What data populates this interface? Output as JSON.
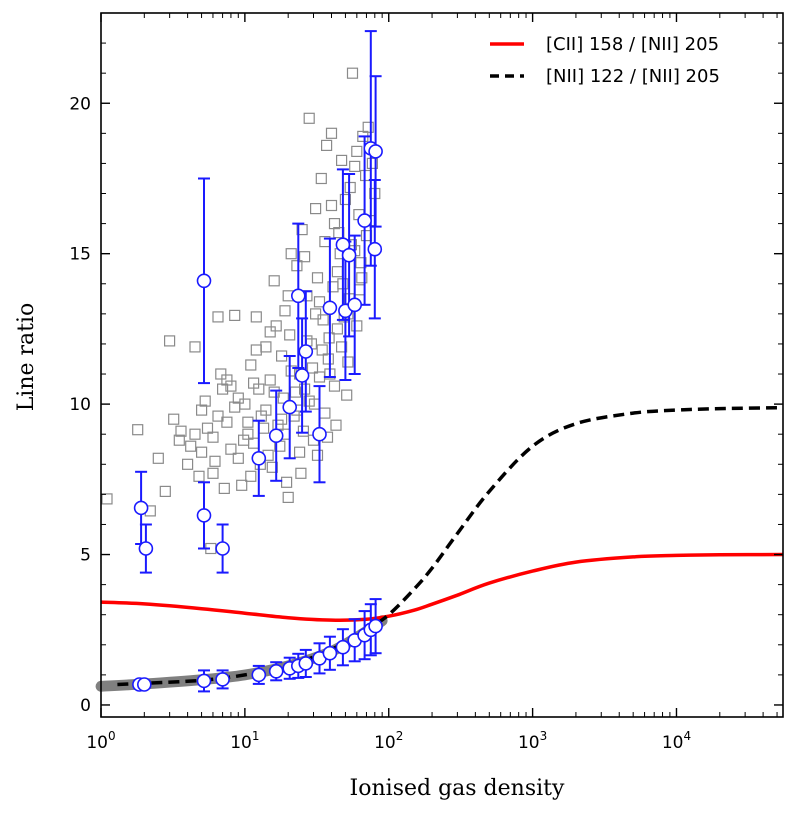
{
  "chart_data": {
    "type": "scatter",
    "title": "",
    "xlabel": "Ionised gas density",
    "ylabel": "Line ratio",
    "xscale": "log",
    "xlim": [
      1,
      55000
    ],
    "ylim": [
      -0.4,
      23
    ],
    "x_ticks": [
      {
        "value": 1,
        "base": "10",
        "exp": "0"
      },
      {
        "value": 10,
        "base": "10",
        "exp": "1"
      },
      {
        "value": 100,
        "base": "10",
        "exp": "2"
      },
      {
        "value": 1000,
        "base": "10",
        "exp": "3"
      },
      {
        "value": 10000,
        "base": "10",
        "exp": "4"
      }
    ],
    "y_ticks": [
      {
        "value": 0,
        "label": "0"
      },
      {
        "value": 5,
        "label": "5"
      },
      {
        "value": 10,
        "label": "10"
      },
      {
        "value": 15,
        "label": "15"
      },
      {
        "value": 20,
        "label": "20"
      }
    ],
    "legend_position": "top-right",
    "lines": [
      {
        "name": "[CII] 158 / [NII] 205",
        "color": "#ff0000",
        "style": "solid",
        "x": [
          1,
          2,
          5,
          10,
          20,
          40,
          70,
          100,
          150,
          200,
          300,
          500,
          1000,
          2000,
          5000,
          10000,
          20000,
          55000
        ],
        "y": [
          3.42,
          3.36,
          3.2,
          3.05,
          2.9,
          2.82,
          2.85,
          2.95,
          3.15,
          3.35,
          3.65,
          4.05,
          4.45,
          4.75,
          4.92,
          4.97,
          4.99,
          5.0
        ]
      },
      {
        "name": "[NII] 122 / [NII] 205",
        "color": "#000000",
        "style": "dashed",
        "x": [
          1.3,
          2,
          5,
          10,
          20,
          40,
          70,
          100,
          150,
          200,
          300,
          500,
          1000,
          2000,
          5000,
          10000,
          20000,
          55000
        ],
        "y": [
          0.68,
          0.72,
          0.82,
          1.0,
          1.3,
          1.85,
          2.5,
          3.0,
          3.85,
          4.55,
          5.7,
          7.1,
          8.6,
          9.35,
          9.7,
          9.8,
          9.85,
          9.88
        ]
      }
    ],
    "band": {
      "color": "#808080",
      "x": [
        1,
        2,
        5,
        10,
        20,
        40,
        70,
        90
      ],
      "y": [
        0.62,
        0.7,
        0.84,
        1.0,
        1.3,
        1.78,
        2.45,
        2.8
      ],
      "half_width": 0.18
    },
    "grey_squares": [
      [
        1.1,
        6.85
      ],
      [
        1.8,
        9.15
      ],
      [
        2.2,
        6.45
      ],
      [
        2.5,
        8.2
      ],
      [
        2.8,
        7.1
      ],
      [
        3.0,
        12.1
      ],
      [
        3.2,
        9.5
      ],
      [
        3.5,
        8.8
      ],
      [
        4.0,
        8.0
      ],
      [
        4.5,
        11.9
      ],
      [
        4.5,
        9.0
      ],
      [
        5.0,
        8.4
      ],
      [
        5.3,
        10.1
      ],
      [
        5.5,
        9.2
      ],
      [
        5.8,
        5.2
      ],
      [
        6.0,
        7.7
      ],
      [
        6.5,
        12.9
      ],
      [
        6.5,
        9.6
      ],
      [
        7.0,
        10.5
      ],
      [
        7.5,
        10.8
      ],
      [
        8.0,
        8.5
      ],
      [
        8.5,
        12.95
      ],
      [
        9.0,
        10.2
      ],
      [
        9.5,
        7.3
      ],
      [
        10.0,
        10.0
      ],
      [
        10.5,
        9.0
      ],
      [
        11.0,
        11.3
      ],
      [
        11.5,
        8.7
      ],
      [
        12.0,
        12.9
      ],
      [
        12.5,
        10.5
      ],
      [
        13.0,
        9.6
      ],
      [
        14.0,
        11.9
      ],
      [
        14.5,
        8.3
      ],
      [
        15.0,
        10.8
      ],
      [
        16.0,
        14.1
      ],
      [
        16.5,
        12.6
      ],
      [
        17.0,
        9.3
      ],
      [
        18.0,
        11.6
      ],
      [
        18.5,
        10.2
      ],
      [
        19.0,
        13.1
      ],
      [
        20.0,
        6.9
      ],
      [
        20.5,
        12.3
      ],
      [
        21.0,
        15.0
      ],
      [
        22.0,
        9.6
      ],
      [
        23.0,
        14.6
      ],
      [
        24.0,
        11.0
      ],
      [
        25.0,
        15.8
      ],
      [
        26.0,
        10.5
      ],
      [
        27.0,
        13.6
      ],
      [
        28.0,
        19.5
      ],
      [
        29.0,
        12.0
      ],
      [
        30.0,
        8.8
      ],
      [
        31.0,
        16.5
      ],
      [
        32.0,
        14.2
      ],
      [
        33.0,
        10.9
      ],
      [
        34.0,
        17.5
      ],
      [
        35.0,
        12.8
      ],
      [
        36.0,
        15.4
      ],
      [
        37.0,
        18.6
      ],
      [
        38.0,
        11.5
      ],
      [
        40.0,
        19.0
      ],
      [
        41.0,
        13.9
      ],
      [
        42.0,
        16.0
      ],
      [
        44.0,
        12.5
      ],
      [
        45.0,
        15.7
      ],
      [
        47.0,
        18.1
      ],
      [
        48.0,
        14.0
      ],
      [
        50.0,
        16.8
      ],
      [
        52.0,
        13.0
      ],
      [
        54.0,
        17.2
      ],
      [
        56.0,
        21.0
      ],
      [
        58.0,
        15.1
      ],
      [
        60.0,
        18.4
      ],
      [
        62.0,
        16.3
      ],
      [
        64.0,
        14.7
      ],
      [
        66.0,
        18.9
      ],
      [
        69.0,
        17.6
      ],
      [
        72.0,
        19.2
      ],
      [
        75.0,
        16.1
      ],
      [
        80.0,
        17.0
      ],
      [
        8.5,
        9.9
      ],
      [
        10.5,
        9.4
      ],
      [
        14.0,
        9.8
      ],
      [
        19.0,
        9.0
      ],
      [
        24.0,
        8.4
      ],
      [
        28.0,
        10.1
      ],
      [
        36.0,
        9.7
      ],
      [
        42.0,
        10.6
      ],
      [
        52.0,
        11.4
      ],
      [
        60.0,
        12.6
      ],
      [
        6.0,
        8.9
      ],
      [
        7.5,
        9.4
      ],
      [
        9.0,
        8.2
      ],
      [
        11.5,
        10.7
      ],
      [
        13.5,
        9.2
      ],
      [
        16.0,
        10.4
      ],
      [
        17.5,
        8.6
      ],
      [
        21.0,
        11.1
      ],
      [
        23.0,
        9.8
      ],
      [
        27.0,
        12.1
      ],
      [
        29.5,
        11.2
      ],
      [
        33.0,
        13.4
      ],
      [
        38.5,
        12.2
      ],
      [
        44.0,
        14.4
      ],
      [
        49.0,
        12.9
      ],
      [
        55.0,
        15.3
      ],
      [
        63.0,
        13.8
      ],
      [
        4.2,
        8.6
      ],
      [
        5.0,
        9.8
      ],
      [
        6.8,
        11.0
      ],
      [
        8.0,
        10.6
      ],
      [
        12.0,
        11.8
      ],
      [
        15.0,
        12.4
      ],
      [
        20.0,
        13.6
      ],
      [
        26.0,
        14.9
      ],
      [
        31.0,
        13.0
      ],
      [
        40.0,
        16.6
      ],
      [
        46.0,
        15.0
      ],
      [
        58.0,
        17.9
      ],
      [
        70.0,
        15.6
      ],
      [
        3.6,
        9.1
      ],
      [
        4.8,
        7.6
      ],
      [
        6.2,
        8.1
      ],
      [
        7.2,
        7.2
      ],
      [
        9.8,
        8.8
      ],
      [
        12.8,
        8.0
      ],
      [
        18.0,
        9.5
      ],
      [
        22.5,
        10.4
      ],
      [
        25.5,
        9.1
      ],
      [
        30.5,
        10.0
      ],
      [
        34.5,
        11.8
      ],
      [
        39.0,
        11.0
      ],
      [
        47.0,
        11.9
      ],
      [
        53.0,
        13.5
      ],
      [
        65.0,
        14.2
      ],
      [
        77.0,
        18.0
      ],
      [
        11.0,
        7.6
      ],
      [
        15.5,
        7.9
      ],
      [
        19.5,
        7.4
      ],
      [
        24.5,
        7.7
      ],
      [
        32.0,
        8.3
      ],
      [
        37.5,
        8.9
      ],
      [
        43.0,
        9.3
      ],
      [
        51.0,
        10.3
      ]
    ],
    "blue_points_high": [
      {
        "x": 1.9,
        "y": 6.55,
        "err": 1.2
      },
      {
        "x": 2.05,
        "y": 5.2,
        "err": 0.8
      },
      {
        "x": 5.2,
        "y": 14.1,
        "err": 3.4
      },
      {
        "x": 5.2,
        "y": 6.3,
        "err": 1.1
      },
      {
        "x": 7.0,
        "y": 5.2,
        "err": 0.8
      },
      {
        "x": 12.5,
        "y": 8.2,
        "err": 1.25
      },
      {
        "x": 16.5,
        "y": 8.95,
        "err": 1.5
      },
      {
        "x": 20.5,
        "y": 9.9,
        "err": 1.7
      },
      {
        "x": 23.5,
        "y": 13.6,
        "err": 2.4
      },
      {
        "x": 25.0,
        "y": 10.95,
        "err": 1.9
      },
      {
        "x": 26.5,
        "y": 11.75,
        "err": 2.0
      },
      {
        "x": 33.0,
        "y": 9.0,
        "err": 1.6
      },
      {
        "x": 39.0,
        "y": 13.2,
        "err": 2.3
      },
      {
        "x": 48.0,
        "y": 15.3,
        "err": 2.5
      },
      {
        "x": 50.0,
        "y": 13.1,
        "err": 2.3
      },
      {
        "x": 53.0,
        "y": 14.95,
        "err": 2.7
      },
      {
        "x": 58.0,
        "y": 13.3,
        "err": 2.3
      },
      {
        "x": 68.0,
        "y": 16.1,
        "err": 2.8
      },
      {
        "x": 75.0,
        "y": 18.5,
        "err": 3.9
      },
      {
        "x": 80.0,
        "y": 15.15,
        "err": 2.3
      },
      {
        "x": 81.0,
        "y": 18.4,
        "err": 2.5
      }
    ],
    "blue_points_low": [
      {
        "x": 1.85,
        "y": 0.68,
        "err": 0.12
      },
      {
        "x": 2.0,
        "y": 0.68,
        "err": 0.12
      },
      {
        "x": 5.2,
        "y": 0.8,
        "err": 0.35
      },
      {
        "x": 7.0,
        "y": 0.85,
        "err": 0.3
      },
      {
        "x": 12.5,
        "y": 1.0,
        "err": 0.3
      },
      {
        "x": 16.5,
        "y": 1.12,
        "err": 0.3
      },
      {
        "x": 20.5,
        "y": 1.22,
        "err": 0.35
      },
      {
        "x": 23.5,
        "y": 1.3,
        "err": 0.4
      },
      {
        "x": 26.5,
        "y": 1.38,
        "err": 0.45
      },
      {
        "x": 33.0,
        "y": 1.55,
        "err": 0.5
      },
      {
        "x": 39.0,
        "y": 1.72,
        "err": 0.55
      },
      {
        "x": 48.0,
        "y": 1.92,
        "err": 0.6
      },
      {
        "x": 58.0,
        "y": 2.15,
        "err": 0.7
      },
      {
        "x": 68.0,
        "y": 2.32,
        "err": 0.8
      },
      {
        "x": 75.0,
        "y": 2.5,
        "err": 0.85
      },
      {
        "x": 81.0,
        "y": 2.62,
        "err": 0.9
      }
    ]
  }
}
